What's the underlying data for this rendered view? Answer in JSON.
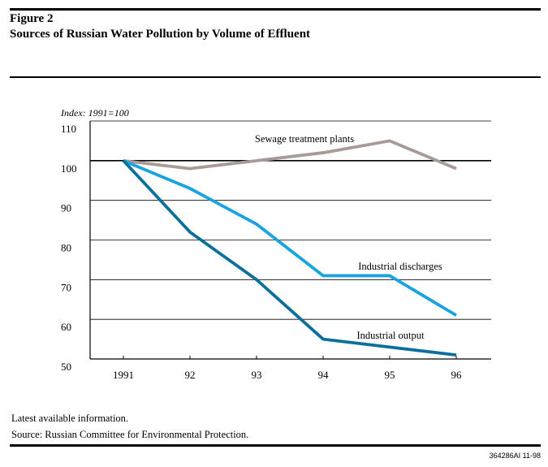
{
  "figure": {
    "label": "Figure 2",
    "title": "Sources of Russian Water Pollution by Volume of Effluent"
  },
  "chart_data": {
    "type": "line",
    "ylabel": "Index: 1991=100",
    "categories": [
      "1991",
      "92",
      "93",
      "94",
      "95",
      "96"
    ],
    "yticks": [
      110,
      100,
      90,
      80,
      70,
      60,
      50
    ],
    "ylim": [
      50,
      110
    ],
    "grid": true,
    "series": [
      {
        "name": "Sewage treatment plants",
        "color": "#a89a96",
        "values": [
          100,
          98,
          100,
          102,
          105,
          98
        ]
      },
      {
        "name": "Industrial discharges",
        "color": "#1aa3e0",
        "values": [
          100,
          93,
          84,
          71,
          71,
          61
        ]
      },
      {
        "name": "Industrial output",
        "color": "#0b6f9c",
        "values": [
          100,
          82,
          70,
          55,
          53,
          51
        ]
      }
    ]
  },
  "notes": {
    "latest": "Latest available information.",
    "source": "Source: Russian Committee for Environmental Protection."
  },
  "code": "364286AI 11-98"
}
